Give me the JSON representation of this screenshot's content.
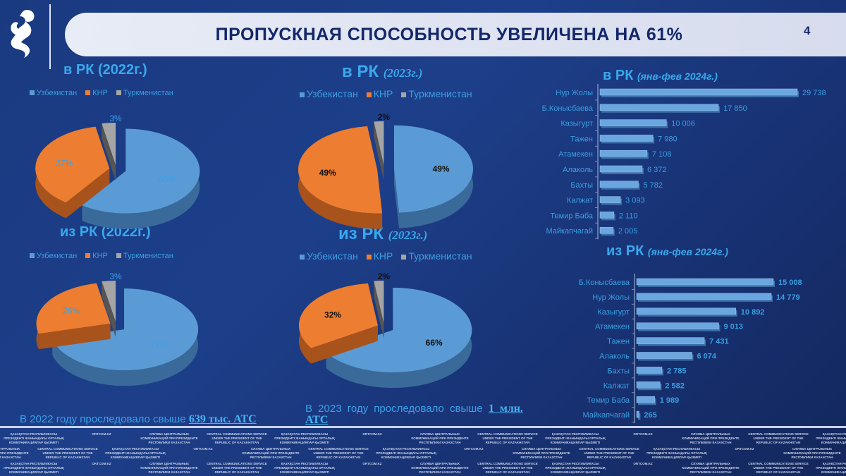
{
  "header": {
    "title": "ПРОПУСКНАЯ СПОСОБНОСТЬ УВЕЛИЧЕНА НА 61%",
    "page_number": "4"
  },
  "colors": {
    "uzbekistan": "#5b9bd5",
    "knr": "#ed7d31",
    "turkmenistan": "#a5a5a5"
  },
  "legend": [
    "Узбекистан",
    "КНР",
    "Туркменистан"
  ],
  "notes": {
    "n2022_text": "В 2022 году проследовало свыше ",
    "n2022_value": "639 тыс. АТС",
    "n2023_text": "В 2023 году проследовало свыше ",
    "n2023_value": "1 млн. АТС"
  },
  "footer_watermark": [
    "ҚАЗАҚСТАН РЕСПУБЛИКАСЫ ПРЕЗИДЕНТІ ЖАНЫНДАҒЫ ОРТАЛЫҚ КОММУНИКАЦИЯЛАР ҚЫЗМЕТІ",
    "ORTCOM.KZ",
    "СЛУЖБА ЦЕНТРАЛЬНЫХ КОММУНИКАЦИЙ ПРИ ПРЕЗИДЕНТЕ РЕСПУБЛИКИ КАЗАХСТАН",
    "CENTRAL COMMUNICATIONS SERVICE UNDER THE PRESIDENT OF THE REPUBLIC OF KAZAKHSTAN"
  ],
  "chart_data": [
    {
      "type": "pie",
      "title_main": "в РК",
      "title_sub": "(2022г.)",
      "categories": [
        "Узбекистан",
        "КНР",
        "Туркменистан"
      ],
      "values": [
        60,
        37,
        3
      ],
      "labels": [
        "60%",
        "37%",
        "3%"
      ]
    },
    {
      "type": "pie",
      "title_main": "в РК",
      "title_sub": "(2023г.)",
      "categories": [
        "Узбекистан",
        "КНР",
        "Туркменистан"
      ],
      "values": [
        49,
        49,
        2
      ],
      "labels": [
        "49%",
        "49%",
        "2%"
      ]
    },
    {
      "type": "pie",
      "title_main": "из РК",
      "title_sub": "(2022г.)",
      "categories": [
        "Узбекистан",
        "КНР",
        "Туркменистан"
      ],
      "values": [
        71,
        26,
        3
      ],
      "labels": [
        "71%",
        "26%",
        "3%"
      ]
    },
    {
      "type": "pie",
      "title_main": "из РК",
      "title_sub": "(2023г.)",
      "categories": [
        "Узбекистан",
        "КНР",
        "Туркменистан"
      ],
      "values": [
        66,
        32,
        2
      ],
      "labels": [
        "66%",
        "32%",
        "2%"
      ]
    },
    {
      "type": "bar",
      "orientation": "horizontal",
      "title_main": "в РК",
      "title_sub": "(янв-фев 2024г.)",
      "categories": [
        "Нур Жолы",
        "Б.Конысбаева",
        "Казыгурт",
        "Тажен",
        "Атамекен",
        "Алаколь",
        "Бахты",
        "Калжат",
        "Темир Баба",
        "Майкапчагай"
      ],
      "values": [
        29738,
        17850,
        10006,
        7980,
        7108,
        6372,
        5782,
        3093,
        2110,
        2005
      ],
      "labels": [
        "29 738",
        "17 850",
        "10 006",
        "7 980",
        "7 108",
        "6 372",
        "5 782",
        "3 093",
        "2 110",
        "2 005"
      ]
    },
    {
      "type": "bar",
      "orientation": "horizontal",
      "title_main": "из РК",
      "title_sub": "(янв-фев 2024г.)",
      "categories": [
        "Б.Конысбаева",
        "Нур Жолы",
        "Казыгурт",
        "Атамекен",
        "Тажен",
        "Алаколь",
        "Бахты",
        "Калжат",
        "Темир Баба",
        "Майкапчагай"
      ],
      "values": [
        15008,
        14779,
        10892,
        9013,
        7431,
        6074,
        2785,
        2582,
        1989,
        265
      ],
      "labels": [
        "15 008",
        "14 779",
        "10 892",
        "9 013",
        "7 431",
        "6 074",
        "2 785",
        "2 582",
        "1 989",
        "265"
      ]
    }
  ]
}
